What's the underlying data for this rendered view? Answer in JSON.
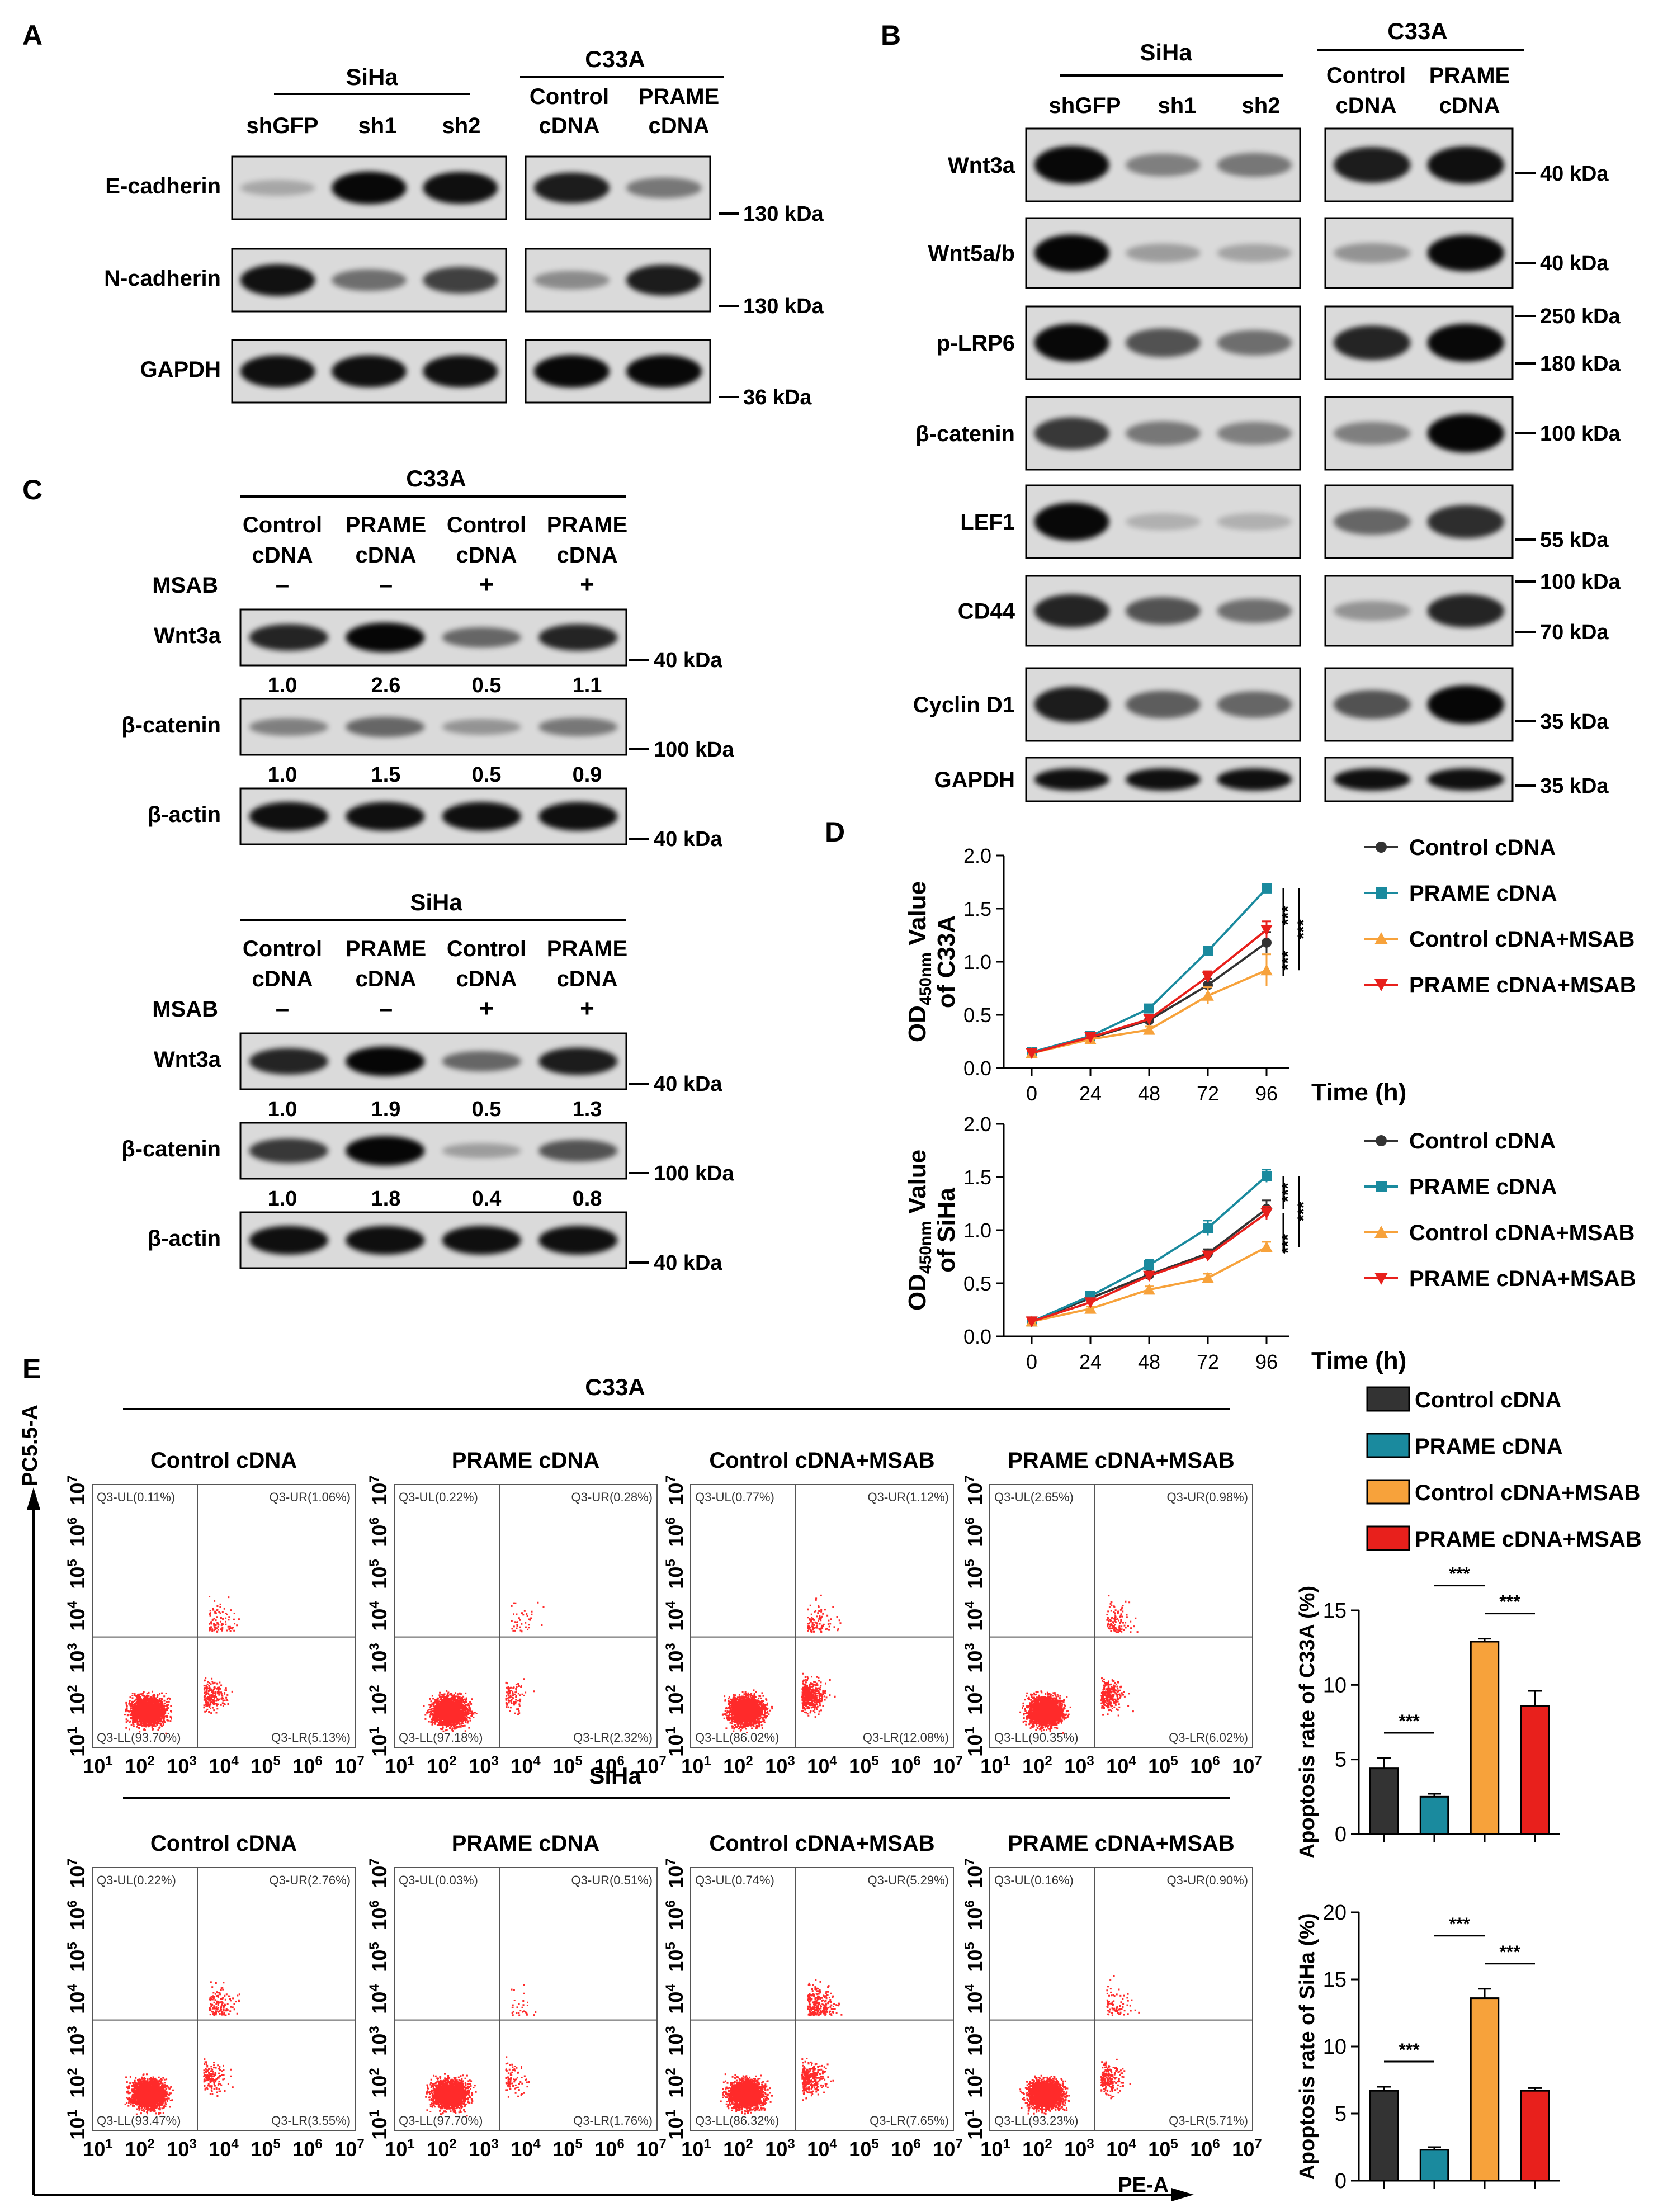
{
  "panels": {
    "A": {
      "letter": "A",
      "siha": {
        "title": "SiHa",
        "lanes": [
          "shGFP",
          "sh1",
          "sh2"
        ]
      },
      "c33a": {
        "title": "C33A",
        "lanes": [
          [
            "Control",
            "cDNA"
          ],
          [
            "PRAME",
            "cDNA"
          ]
        ]
      },
      "rows": [
        {
          "label": "E-cadherin",
          "kda": "130 kDa",
          "siha_band": [
            0.1,
            0.95,
            0.92
          ],
          "c33a_band": [
            0.85,
            0.35
          ]
        },
        {
          "label": "N-cadherin",
          "kda": "130 kDa",
          "siha_band": [
            0.9,
            0.4,
            0.65
          ],
          "c33a_band": [
            0.25,
            0.85
          ]
        },
        {
          "label": "GAPDH",
          "kda": "36 kDa",
          "siha_band": [
            0.92,
            0.92,
            0.92
          ],
          "c33a_band": [
            0.95,
            0.95
          ]
        }
      ]
    },
    "B": {
      "letter": "B",
      "siha": {
        "title": "SiHa",
        "lanes": [
          "shGFP",
          "sh1",
          "sh2"
        ]
      },
      "c33a": {
        "title": "C33A",
        "lanes": [
          [
            "Control",
            "cDNA"
          ],
          [
            "PRAME",
            "cDNA"
          ]
        ]
      },
      "rows": [
        {
          "label": "Wnt3a",
          "kda": [
            "40 kDa"
          ],
          "siha_band": [
            0.95,
            0.3,
            0.35
          ],
          "c33a_band": [
            0.85,
            0.92
          ]
        },
        {
          "label": "Wnt5a/b",
          "kda": [
            "40 kDa"
          ],
          "siha_band": [
            0.97,
            0.15,
            0.12
          ],
          "c33a_band": [
            0.2,
            0.95
          ]
        },
        {
          "label": "p-LRP6",
          "kda": [
            "250 kDa",
            "180 kDa"
          ],
          "siha_band": [
            0.95,
            0.55,
            0.4
          ],
          "c33a_band": [
            0.8,
            0.95
          ]
        },
        {
          "label": "β-catenin",
          "kda": [
            "100 kDa"
          ],
          "siha_band": [
            0.7,
            0.35,
            0.3
          ],
          "c33a_band": [
            0.3,
            0.97
          ]
        },
        {
          "label": "LEF1",
          "kda": [
            "55 kDa"
          ],
          "siha_band": [
            0.95,
            0.05,
            0.05
          ],
          "c33a_band": [
            0.45,
            0.75
          ]
        },
        {
          "label": "CD44",
          "kda": [
            "100 kDa",
            "70 kDa"
          ],
          "siha_band": [
            0.8,
            0.55,
            0.4
          ],
          "c33a_band": [
            0.2,
            0.8
          ]
        },
        {
          "label": "Cyclin D1",
          "kda": [
            "35 kDa"
          ],
          "siha_band": [
            0.85,
            0.5,
            0.45
          ],
          "c33a_band": [
            0.55,
            0.97
          ]
        },
        {
          "label": "GAPDH",
          "kda": [
            "35 kDa"
          ],
          "siha_band": [
            0.92,
            0.92,
            0.92
          ],
          "c33a_band": [
            0.92,
            0.92
          ]
        }
      ]
    },
    "C": {
      "letter": "C",
      "blots": [
        {
          "title": "C33A",
          "lanes": [
            [
              "Control",
              "cDNA"
            ],
            [
              "PRAME",
              "cDNA"
            ],
            [
              "Control",
              "cDNA"
            ],
            [
              "PRAME",
              "cDNA"
            ]
          ],
          "treatment_label": "MSAB",
          "signs": [
            "–",
            "–",
            "+",
            "+"
          ],
          "rows": [
            {
              "label": "Wnt3a",
              "kda": "40 kDa",
              "band": [
                0.8,
                0.97,
                0.45,
                0.8
              ],
              "quant": [
                "1.0",
                "2.6",
                "0.5",
                "1.1"
              ]
            },
            {
              "label": "β-catenin",
              "kda": "100 kDa",
              "band": [
                0.3,
                0.45,
                0.2,
                0.35
              ],
              "quant": [
                "1.0",
                "1.5",
                "0.5",
                "0.9"
              ]
            },
            {
              "label": "β-actin",
              "kda": "40 kDa",
              "band": [
                0.92,
                0.92,
                0.92,
                0.92
              ],
              "quant": []
            }
          ]
        },
        {
          "title": "SiHa",
          "lanes": [
            [
              "Control",
              "cDNA"
            ],
            [
              "PRAME",
              "cDNA"
            ],
            [
              "Control",
              "cDNA"
            ],
            [
              "PRAME",
              "cDNA"
            ]
          ],
          "treatment_label": "MSAB",
          "signs": [
            "–",
            "–",
            "+",
            "+"
          ],
          "rows": [
            {
              "label": "Wnt3a",
              "kda": "40 kDa",
              "band": [
                0.8,
                0.97,
                0.45,
                0.85
              ],
              "quant": [
                "1.0",
                "1.9",
                "0.5",
                "1.3"
              ]
            },
            {
              "label": "β-catenin",
              "kda": "100 kDa",
              "band": [
                0.7,
                0.97,
                0.15,
                0.55
              ],
              "quant": [
                "1.0",
                "1.8",
                "0.4",
                "0.8"
              ]
            },
            {
              "label": "β-actin",
              "kda": "40 kDa",
              "band": [
                0.92,
                0.92,
                0.92,
                0.92
              ],
              "quant": []
            }
          ]
        }
      ]
    },
    "E": {
      "letter": "E",
      "y_axis_label": "PC5.5-A",
      "x_axis_label": "PE-A",
      "tick_labels": [
        "10",
        "10",
        "10",
        "10",
        "10",
        "10",
        "10"
      ],
      "tick_exponents": [
        "1",
        "2",
        "3",
        "4",
        "5",
        "6",
        "7"
      ],
      "groups": [
        {
          "title": "C33A",
          "plots": [
            {
              "title": "Control cDNA",
              "UL": "Q3-UL(0.11%)",
              "UR": "Q3-UR(1.06%)",
              "LL": "Q3-LL(93.70%)",
              "LR": "Q3-LR(5.13%)",
              "ur_count": 90,
              "lr_count": 200
            },
            {
              "title": "PRAME cDNA",
              "UL": "Q3-UL(0.22%)",
              "UR": "Q3-UR(0.28%)",
              "LL": "Q3-LL(97.18%)",
              "LR": "Q3-LR(2.32%)",
              "ur_count": 40,
              "lr_count": 100
            },
            {
              "title": "Control cDNA+MSAB",
              "UL": "Q3-UL(0.77%)",
              "UR": "Q3-UR(1.12%)",
              "LL": "Q3-LL(86.02%)",
              "LR": "Q3-LR(12.08%)",
              "ur_count": 110,
              "lr_count": 450
            },
            {
              "title": "PRAME cDNA+MSAB",
              "UL": "Q3-UL(2.65%)",
              "UR": "Q3-UR(0.98%)",
              "LL": "Q3-LL(90.35%)",
              "LR": "Q3-LR(6.02%)",
              "ur_count": 120,
              "lr_count": 260
            }
          ]
        },
        {
          "title": "SiHa",
          "plots": [
            {
              "title": "Control cDNA",
              "UL": "Q3-UL(0.22%)",
              "UR": "Q3-UR(2.76%)",
              "LL": "Q3-LL(93.47%)",
              "LR": "Q3-LR(3.55%)",
              "ur_count": 140,
              "lr_count": 150
            },
            {
              "title": "PRAME cDNA",
              "UL": "Q3-UL(0.03%)",
              "UR": "Q3-UR(0.51%)",
              "LL": "Q3-LL(97.70%)",
              "LR": "Q3-LR(1.76%)",
              "ur_count": 30,
              "lr_count": 80
            },
            {
              "title": "Control cDNA+MSAB",
              "UL": "Q3-UL(0.74%)",
              "UR": "Q3-UR(5.29%)",
              "LL": "Q3-LL(86.32%)",
              "LR": "Q3-LR(7.65%)",
              "ur_count": 260,
              "lr_count": 300
            },
            {
              "title": "PRAME cDNA+MSAB",
              "UL": "Q3-UL(0.16%)",
              "UR": "Q3-UR(0.90%)",
              "LL": "Q3-LL(93.23%)",
              "LR": "Q3-LR(5.71%)",
              "ur_count": 80,
              "lr_count": 220
            }
          ]
        }
      ]
    }
  },
  "colors": {
    "control": "#333333",
    "prame": "#1a8a9e",
    "control_msab": "#f7a23b",
    "prame_msab": "#e8201c",
    "dot": "#ff2a2a"
  },
  "chart_data": [
    {
      "id": "D-top",
      "panel_letter": "D",
      "type": "line",
      "title": "",
      "ylabel": "OD450nm Value of C33A",
      "ylabel_main": "OD",
      "ylabel_sub": "450nm",
      "ylabel_rest": " Value",
      "ylabel_line2": "of C33A",
      "xlabel": "Time (h)",
      "x": [
        0,
        24,
        48,
        72,
        96
      ],
      "ylim": [
        0,
        2.0
      ],
      "yticks": [
        "0.0",
        "0.5",
        "1.0",
        "1.5",
        "2.0"
      ],
      "series": [
        {
          "name": "Control cDNA",
          "marker": "circle",
          "values": [
            0.14,
            0.28,
            0.45,
            0.78,
            1.18
          ],
          "err": [
            0.02,
            0.02,
            0.03,
            0.06,
            0.1
          ]
        },
        {
          "name": "PRAME cDNA",
          "marker": "square",
          "values": [
            0.15,
            0.3,
            0.56,
            1.1,
            1.69
          ],
          "err": [
            0.02,
            0.02,
            0.03,
            0.04,
            0.03
          ]
        },
        {
          "name": "Control cDNA+MSAB",
          "marker": "triangle-up",
          "values": [
            0.14,
            0.27,
            0.36,
            0.68,
            0.92
          ],
          "err": [
            0.02,
            0.02,
            0.03,
            0.08,
            0.15
          ]
        },
        {
          "name": "PRAME cDNA+MSAB",
          "marker": "triangle-down",
          "values": [
            0.14,
            0.29,
            0.46,
            0.86,
            1.3
          ],
          "err": [
            0.02,
            0.02,
            0.03,
            0.05,
            0.08
          ]
        }
      ],
      "significance": [
        "***",
        "***",
        "***"
      ]
    },
    {
      "id": "D-bottom",
      "type": "line",
      "title": "",
      "ylabel": "OD450nm Value of SiHa",
      "ylabel_main": "OD",
      "ylabel_sub": "450nm",
      "ylabel_rest": " Value",
      "ylabel_line2": "of SiHa",
      "xlabel": "Time (h)",
      "x": [
        0,
        24,
        48,
        72,
        96
      ],
      "ylim": [
        0,
        2.0
      ],
      "yticks": [
        "0.0",
        "0.5",
        "1.0",
        "1.5",
        "2.0"
      ],
      "series": [
        {
          "name": "Control cDNA",
          "marker": "circle",
          "values": [
            0.14,
            0.36,
            0.58,
            0.78,
            1.2
          ],
          "err": [
            0.02,
            0.02,
            0.03,
            0.04,
            0.08
          ]
        },
        {
          "name": "PRAME cDNA",
          "marker": "square",
          "values": [
            0.14,
            0.38,
            0.67,
            1.02,
            1.51
          ],
          "err": [
            0.02,
            0.02,
            0.05,
            0.07,
            0.06
          ]
        },
        {
          "name": "Control cDNA+MSAB",
          "marker": "triangle-up",
          "values": [
            0.14,
            0.26,
            0.44,
            0.55,
            0.84
          ],
          "err": [
            0.02,
            0.02,
            0.03,
            0.04,
            0.05
          ]
        },
        {
          "name": "PRAME cDNA+MSAB",
          "marker": "triangle-down",
          "values": [
            0.14,
            0.32,
            0.57,
            0.76,
            1.16
          ],
          "err": [
            0.02,
            0.02,
            0.03,
            0.04,
            0.06
          ]
        }
      ],
      "significance": [
        "***",
        "***",
        "***"
      ]
    },
    {
      "id": "E-bar-top",
      "type": "bar",
      "title": "",
      "ylabel": "Apoptosis rate of C33A (%)",
      "categories": [
        "Control cDNA",
        "PRAME cDNA",
        "Control cDNA+MSAB",
        "PRAME cDNA+MSAB"
      ],
      "values": [
        4.4,
        2.5,
        12.9,
        8.6
      ],
      "err": [
        0.7,
        0.2,
        0.2,
        1.0
      ],
      "ylim": [
        0,
        15
      ],
      "yticks": [
        "0",
        "5",
        "10",
        "15"
      ],
      "significance": [
        {
          "pair": [
            0,
            1
          ],
          "label": "***"
        },
        {
          "pair": [
            1,
            2
          ],
          "label": "***"
        },
        {
          "pair": [
            2,
            3
          ],
          "label": "***"
        }
      ]
    },
    {
      "id": "E-bar-bottom",
      "type": "bar",
      "title": "",
      "ylabel": "Apoptosis rate of SiHa (%)",
      "categories": [
        "Control cDNA",
        "PRAME cDNA",
        "Control cDNA+MSAB",
        "PRAME cDNA+MSAB"
      ],
      "values": [
        6.7,
        2.3,
        13.6,
        6.7
      ],
      "err": [
        0.3,
        0.2,
        0.7,
        0.2
      ],
      "ylim": [
        0,
        20
      ],
      "yticks": [
        "0",
        "5",
        "10",
        "15",
        "20"
      ],
      "significance": [
        {
          "pair": [
            0,
            1
          ],
          "label": "***"
        },
        {
          "pair": [
            1,
            2
          ],
          "label": "***"
        },
        {
          "pair": [
            2,
            3
          ],
          "label": "***"
        }
      ]
    }
  ],
  "legend": {
    "entries": [
      "Control cDNA",
      "PRAME cDNA",
      "Control cDNA+MSAB",
      "PRAME cDNA+MSAB"
    ]
  }
}
